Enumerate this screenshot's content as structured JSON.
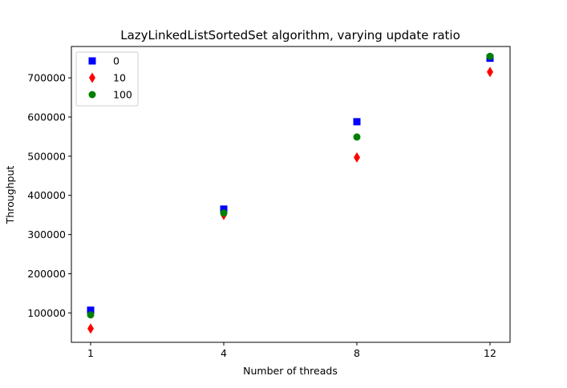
{
  "chart_data": {
    "type": "scatter",
    "title": "LazyLinkedListSortedSet algorithm, varying update ratio",
    "xlabel": "Number of threads",
    "ylabel": "Throughput",
    "categories": [
      "1",
      "4",
      "8",
      "12"
    ],
    "ylim": [
      25000,
      780000
    ],
    "yticks": [
      100000,
      200000,
      300000,
      400000,
      500000,
      600000,
      700000
    ],
    "ytick_labels": [
      "100000",
      "200000",
      "300000",
      "400000",
      "500000",
      "600000",
      "700000"
    ],
    "grid": false,
    "legend_position": "top-left",
    "series": [
      {
        "name": "0",
        "marker": "square",
        "color": "#0000ff",
        "values": [
          107000,
          365000,
          588000,
          750000
        ]
      },
      {
        "name": "10",
        "marker": "diamond",
        "color": "#ff0000",
        "values": [
          60000,
          350000,
          497000,
          715000
        ]
      },
      {
        "name": "100",
        "marker": "circle",
        "color": "#008000",
        "values": [
          95000,
          355000,
          549000,
          755000
        ]
      }
    ]
  }
}
